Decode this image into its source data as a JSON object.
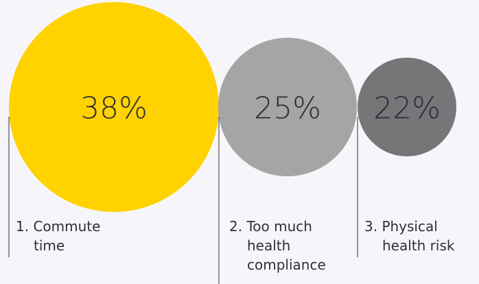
{
  "chart_data": {
    "type": "bubble",
    "series": [
      {
        "rank": "1.",
        "label_lines": [
          "Commute",
          "time"
        ],
        "value": 38,
        "value_label": "38%",
        "color": "#ffd200"
      },
      {
        "rank": "2.",
        "label_lines": [
          "Too much",
          "health",
          "compliance"
        ],
        "value": 25,
        "value_label": "25%",
        "color": "#a5a5a5"
      },
      {
        "rank": "3.",
        "label_lines": [
          "Physical",
          "health risk"
        ],
        "value": 22,
        "value_label": "22%",
        "color": "#747677"
      }
    ]
  }
}
